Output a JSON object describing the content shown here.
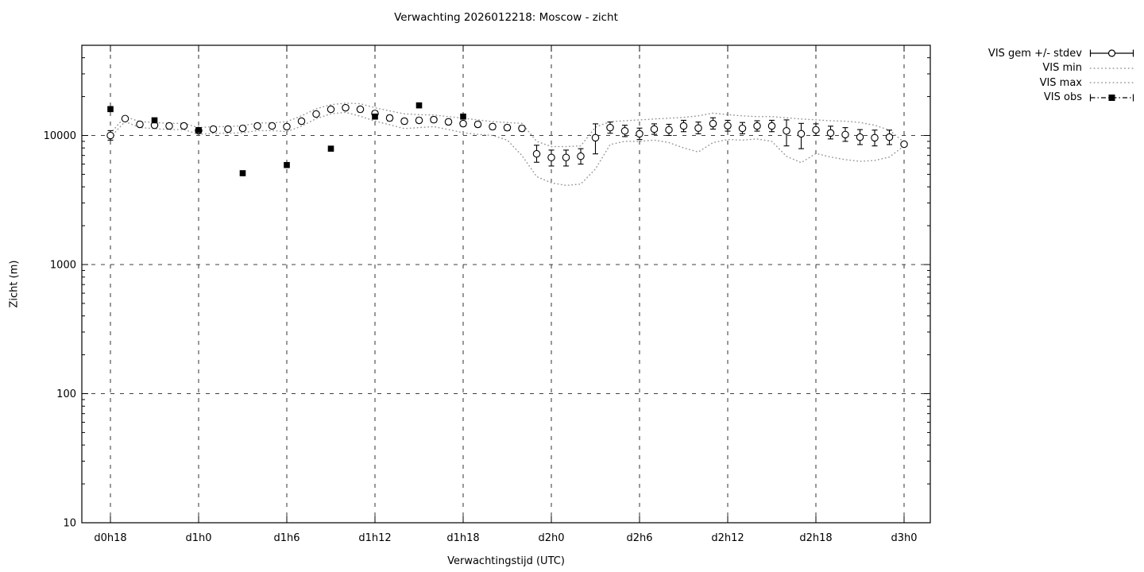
{
  "chart_data": {
    "type": "line",
    "title": "Verwachting 2026012218: Moscow - zicht",
    "xlabel": "Verwachtingstijd (UTC)",
    "ylabel": "Zicht (m)",
    "y_scale": "log",
    "ylim": [
      10,
      50000
    ],
    "y_major_ticks": [
      10,
      100,
      1000,
      10000
    ],
    "x_tick_labels": [
      "d0h18",
      "d1h0",
      "d1h6",
      "d1h12",
      "d1h18",
      "d2h0",
      "d2h6",
      "d2h12",
      "d2h18",
      "d3h0"
    ],
    "x_hours_range": [
      0,
      54
    ],
    "x_tick_step_hours": 6,
    "grid": "dashed-major-both-axes",
    "legend": {
      "position": "outside-top-right",
      "entries": [
        {
          "label": "VIS gem +/- stdev",
          "style": "errorbar-open-circle"
        },
        {
          "label": "VIS min",
          "style": "dotted-line"
        },
        {
          "label": "VIS max",
          "style": "dotted-line"
        },
        {
          "label": "VIS obs",
          "style": "dashdot-filled-square"
        }
      ]
    },
    "colors": {
      "foreground": "#000000",
      "envelope": "#999999",
      "background": "#ffffff"
    },
    "series": [
      {
        "name": "VIS gem +/- stdev",
        "type": "errorbar-points",
        "marker": "open-circle",
        "x_step_hours": 1,
        "mean": [
          10000,
          13500,
          12200,
          12000,
          11850,
          11850,
          10900,
          11200,
          11200,
          11350,
          11850,
          11850,
          11700,
          12900,
          14650,
          15950,
          16400,
          15950,
          14800,
          13650,
          12900,
          13100,
          13250,
          12750,
          12350,
          12200,
          11700,
          11500,
          11350,
          7200,
          6750,
          6750,
          6900,
          9600,
          11500,
          10850,
          10300,
          11200,
          11050,
          11850,
          11400,
          12350,
          11900,
          11350,
          11850,
          11850,
          10850,
          10300,
          11050,
          10450,
          10150,
          9700,
          9600,
          9700,
          8550
        ],
        "err_lo": [
          9200,
          13000,
          11700,
          11550,
          11400,
          11400,
          10400,
          10750,
          10750,
          10900,
          11400,
          11400,
          11200,
          12400,
          14100,
          15300,
          15750,
          15250,
          14100,
          13000,
          12300,
          12500,
          12650,
          12150,
          11800,
          11650,
          11150,
          10950,
          10800,
          6200,
          5800,
          5800,
          6000,
          7200,
          10400,
          9800,
          9300,
          10200,
          10000,
          10700,
          10300,
          11200,
          10800,
          10300,
          10800,
          10700,
          8300,
          7900,
          10000,
          9400,
          9000,
          8500,
          8300,
          8500,
          8300
        ],
        "err_hi": [
          10900,
          14000,
          12700,
          12500,
          12350,
          12350,
          11400,
          11650,
          11650,
          11800,
          12350,
          12350,
          12200,
          13400,
          15200,
          16600,
          17100,
          16600,
          15500,
          14300,
          13500,
          13700,
          13900,
          13350,
          12900,
          12750,
          12250,
          12050,
          11900,
          8400,
          7700,
          7700,
          7900,
          12300,
          12700,
          12000,
          11400,
          12300,
          12200,
          13100,
          12700,
          13700,
          13100,
          12600,
          13000,
          13100,
          13200,
          12400,
          12300,
          11800,
          11500,
          11100,
          11000,
          11000,
          8850
        ]
      },
      {
        "name": "VIS min",
        "type": "dotted-line",
        "x_step_hours": 1,
        "values": [
          9700,
          12800,
          11500,
          11300,
          11100,
          11100,
          10200,
          10400,
          10400,
          10500,
          10900,
          10900,
          10700,
          11800,
          13500,
          14700,
          15100,
          14100,
          12900,
          12100,
          11300,
          11500,
          11700,
          11100,
          10500,
          10200,
          10000,
          9200,
          7000,
          4800,
          4300,
          4100,
          4200,
          5500,
          8500,
          9000,
          9000,
          9200,
          8800,
          8000,
          7450,
          8800,
          9300,
          9200,
          9400,
          9000,
          6900,
          6150,
          7250,
          6800,
          6500,
          6300,
          6400,
          6800,
          8300
        ]
      },
      {
        "name": "VIS max",
        "type": "dotted-line",
        "x_step_hours": 1,
        "values": [
          10400,
          14000,
          12800,
          12600,
          12400,
          12400,
          11500,
          11700,
          11700,
          11900,
          12500,
          12500,
          12800,
          14200,
          16100,
          17300,
          17800,
          17600,
          16400,
          15500,
          14700,
          14500,
          14400,
          14000,
          13600,
          13200,
          12800,
          12600,
          12400,
          9000,
          8200,
          8200,
          8300,
          11600,
          12800,
          13000,
          13200,
          13400,
          13600,
          13800,
          14200,
          14900,
          14500,
          14200,
          14000,
          14000,
          13700,
          13400,
          13200,
          13000,
          12900,
          12600,
          12000,
          11000,
          8850
        ]
      },
      {
        "name": "VIS obs",
        "type": "points",
        "marker": "filled-square",
        "x_hours": [
          0,
          3,
          6,
          9,
          12,
          15,
          18,
          21,
          24
        ],
        "values": [
          16000,
          13100,
          11000,
          5100,
          5900,
          7900,
          14000,
          17100,
          14000
        ]
      }
    ]
  }
}
